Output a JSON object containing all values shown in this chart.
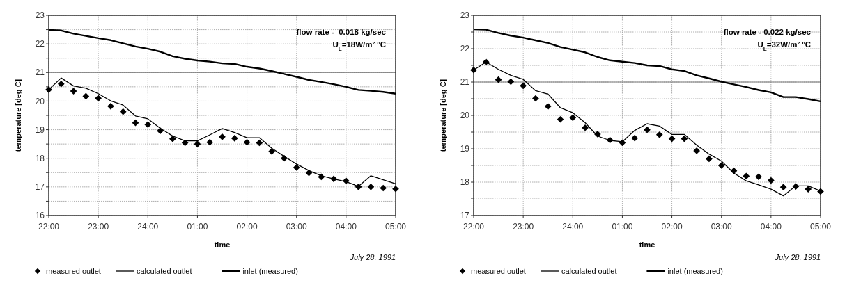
{
  "chart_data": [
    {
      "type": "line",
      "xlabel": "time",
      "ylabel": "temperature [deg C]",
      "x": [
        "1991-07-28T22:00",
        "1991-07-28T22:15",
        "1991-07-28T22:30",
        "1991-07-28T22:45",
        "1991-07-28T23:00",
        "1991-07-28T23:15",
        "1991-07-28T23:30",
        "1991-07-28T23:45",
        "1991-07-29T00:00",
        "1991-07-29T00:15",
        "1991-07-29T00:30",
        "1991-07-29T00:45",
        "1991-07-29T01:00",
        "1991-07-29T01:15",
        "1991-07-29T01:30",
        "1991-07-29T01:45",
        "1991-07-29T02:00",
        "1991-07-29T02:15",
        "1991-07-29T02:30",
        "1991-07-29T02:45",
        "1991-07-29T03:00",
        "1991-07-29T03:15",
        "1991-07-29T03:30",
        "1991-07-29T03:45",
        "1991-07-29T04:00",
        "1991-07-29T04:15",
        "1991-07-29T04:30",
        "1991-07-29T04:45",
        "1991-07-29T05:00"
      ],
      "xlim": [
        "1991-07-28T22:00",
        "1991-07-29T05:00"
      ],
      "xticks": [
        {
          "value": "1991-07-28T22:00",
          "label": "22:00"
        },
        {
          "value": "1991-07-28T23:00",
          "label": "23:00"
        },
        {
          "value": "1991-07-29T00:00",
          "label": "24:00"
        },
        {
          "value": "1991-07-29T01:00",
          "label": "01:00"
        },
        {
          "value": "1991-07-29T02:00",
          "label": "02:00"
        },
        {
          "value": "1991-07-29T03:00",
          "label": "03:00"
        },
        {
          "value": "1991-07-29T04:00",
          "label": "04:00"
        },
        {
          "value": "1991-07-29T05:00",
          "label": "05:00"
        }
      ],
      "ylim": [
        16,
        23
      ],
      "yticks": [
        16,
        {
          "value": 16.5,
          "label": null
        },
        17,
        {
          "value": 17.5,
          "label": null
        },
        18,
        {
          "value": 18.5,
          "label": null
        },
        19,
        {
          "value": 19.5,
          "label": null
        },
        20,
        {
          "value": 20.5,
          "label": null
        },
        21,
        {
          "value": 21.5,
          "label": null
        },
        22,
        {
          "value": 22.5,
          "label": null
        },
        23
      ],
      "grid": true,
      "legend": "bottom",
      "ref_lines": [
        {
          "axis": "y",
          "value": 21,
          "color": "#777777"
        }
      ],
      "annotations": [
        "flow rate -  0.018 kg/sec",
        "U$_{L}$=18W/m² ºC",
        "July 28, 1991"
      ],
      "series": [
        {
          "name": "measured outlet",
          "type": "scatter",
          "marker": "diamond",
          "color": "#000000",
          "values": [
            20.4,
            20.6,
            20.35,
            20.17,
            20.1,
            19.82,
            19.63,
            19.24,
            19.18,
            18.96,
            18.68,
            18.54,
            18.5,
            18.56,
            18.75,
            18.7,
            18.56,
            18.54,
            18.24,
            18.0,
            17.68,
            17.49,
            17.35,
            17.28,
            17.21,
            17.0,
            17.0,
            16.96,
            16.93
          ]
        },
        {
          "name": "calculated outlet",
          "color": "#000000",
          "values": [
            20.4,
            20.81,
            20.53,
            20.45,
            20.26,
            20.01,
            19.86,
            19.48,
            19.38,
            19.05,
            18.78,
            18.61,
            18.61,
            18.82,
            19.04,
            18.9,
            18.72,
            18.72,
            18.35,
            18.07,
            17.8,
            17.57,
            17.39,
            17.28,
            17.18,
            17.02,
            17.39,
            17.25,
            17.11
          ]
        },
        {
          "name": "inlet (measured)",
          "color": "#000000",
          "values": [
            22.49,
            22.47,
            22.36,
            22.28,
            22.2,
            22.13,
            22.02,
            21.91,
            21.83,
            21.73,
            21.57,
            21.48,
            21.42,
            21.38,
            21.32,
            21.3,
            21.2,
            21.14,
            21.05,
            20.95,
            20.85,
            20.74,
            20.67,
            20.59,
            20.5,
            20.39,
            20.36,
            20.32,
            20.26
          ]
        }
      ]
    },
    {
      "type": "line",
      "xlabel": "time",
      "ylabel": "temperature [deg C]",
      "x": [
        "1991-07-28T22:00",
        "1991-07-28T22:15",
        "1991-07-28T22:30",
        "1991-07-28T22:45",
        "1991-07-28T23:00",
        "1991-07-28T23:15",
        "1991-07-28T23:30",
        "1991-07-28T23:45",
        "1991-07-29T00:00",
        "1991-07-29T00:15",
        "1991-07-29T00:30",
        "1991-07-29T00:45",
        "1991-07-29T01:00",
        "1991-07-29T01:15",
        "1991-07-29T01:30",
        "1991-07-29T01:45",
        "1991-07-29T02:00",
        "1991-07-29T02:15",
        "1991-07-29T02:30",
        "1991-07-29T02:45",
        "1991-07-29T03:00",
        "1991-07-29T03:15",
        "1991-07-29T03:30",
        "1991-07-29T03:45",
        "1991-07-29T04:00",
        "1991-07-29T04:15",
        "1991-07-29T04:30",
        "1991-07-29T04:45",
        "1991-07-29T05:00"
      ],
      "xlim": [
        "1991-07-28T22:00",
        "1991-07-29T05:00"
      ],
      "xticks": [
        {
          "value": "1991-07-28T22:00",
          "label": "22:00"
        },
        {
          "value": "1991-07-28T23:00",
          "label": "23:00"
        },
        {
          "value": "1991-07-29T00:00",
          "label": "24:00"
        },
        {
          "value": "1991-07-29T01:00",
          "label": "01:00"
        },
        {
          "value": "1991-07-29T02:00",
          "label": "02:00"
        },
        {
          "value": "1991-07-29T03:00",
          "label": "03:00"
        },
        {
          "value": "1991-07-29T04:00",
          "label": "04:00"
        },
        {
          "value": "1991-07-29T05:00",
          "label": "05:00"
        }
      ],
      "ylim": [
        17,
        23
      ],
      "yticks": [
        17,
        {
          "value": 17.5,
          "label": null
        },
        18,
        {
          "value": 18.5,
          "label": null
        },
        19,
        {
          "value": 19.5,
          "label": null
        },
        20,
        {
          "value": 20.5,
          "label": null
        },
        21,
        {
          "value": 21.5,
          "label": null
        },
        22,
        {
          "value": 22.5,
          "label": null
        },
        23
      ],
      "grid": true,
      "legend": "bottom",
      "ref_lines": [
        {
          "axis": "y",
          "value": 21,
          "color": "#777777"
        }
      ],
      "annotations": [
        "flow rate - 0.022 kg/sec",
        "U$_{L}$=32W/m² ºC",
        "July 28, 1991"
      ],
      "series": [
        {
          "name": "measured outlet",
          "type": "scatter",
          "marker": "diamond",
          "color": "#000000",
          "values": [
            21.36,
            21.6,
            21.07,
            21.01,
            20.89,
            20.51,
            20.27,
            19.88,
            19.93,
            19.63,
            19.44,
            19.26,
            19.18,
            19.32,
            19.57,
            19.42,
            19.3,
            19.3,
            18.94,
            18.7,
            18.5,
            18.34,
            18.18,
            18.16,
            18.05,
            17.85,
            17.87,
            17.79,
            17.72
          ]
        },
        {
          "name": "calculated outlet",
          "color": "#000000",
          "values": [
            21.36,
            21.6,
            21.38,
            21.2,
            21.08,
            20.74,
            20.64,
            20.23,
            20.08,
            19.78,
            19.38,
            19.25,
            19.21,
            19.55,
            19.75,
            19.68,
            19.43,
            19.43,
            19.11,
            18.84,
            18.63,
            18.27,
            18.04,
            17.92,
            17.79,
            17.59,
            17.89,
            17.89,
            17.73
          ]
        },
        {
          "name": "inlet (measured)",
          "color": "#000000",
          "values": [
            22.58,
            22.57,
            22.47,
            22.39,
            22.33,
            22.25,
            22.17,
            22.05,
            21.97,
            21.89,
            21.75,
            21.65,
            21.61,
            21.57,
            21.5,
            21.48,
            21.38,
            21.33,
            21.2,
            21.11,
            21.01,
            20.93,
            20.85,
            20.76,
            20.69,
            20.55,
            20.55,
            20.49,
            20.42
          ]
        }
      ]
    }
  ]
}
